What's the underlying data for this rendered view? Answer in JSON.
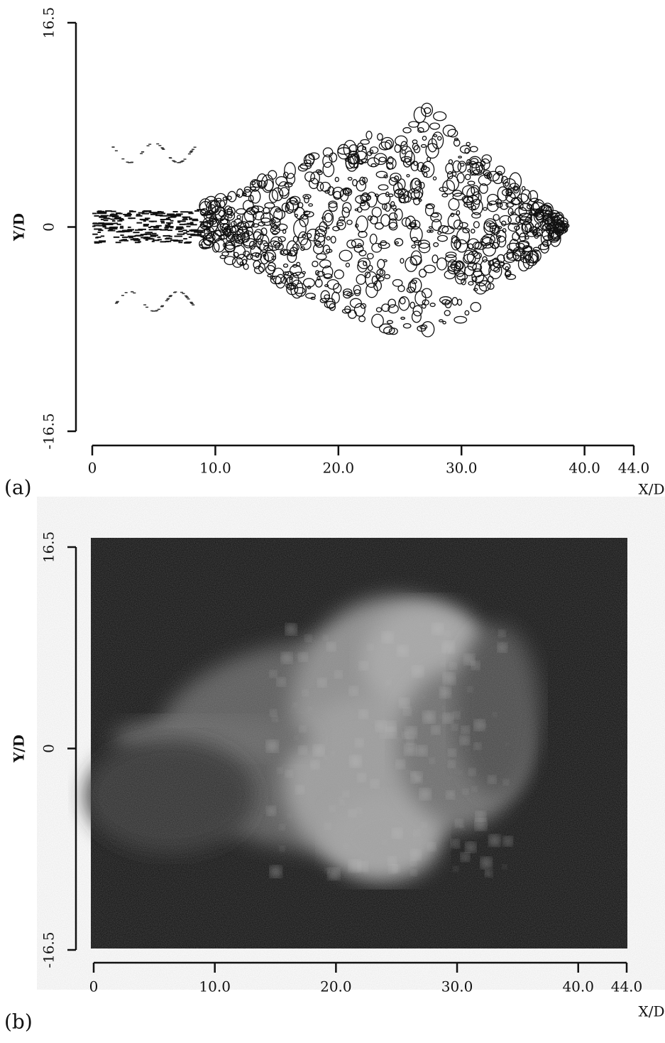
{
  "figure": {
    "panels": [
      {
        "label": "(a)",
        "xlabel": "X/D",
        "ylabel": "Y/D",
        "xlim": [
          0,
          44
        ],
        "ylim": [
          -16.5,
          16.5
        ],
        "xticks": [
          0,
          {
            "value": 10,
            "label": "10.0"
          },
          {
            "value": 20,
            "label": "20.0"
          },
          {
            "value": 30,
            "label": "30.0"
          },
          {
            "value": 40,
            "label": "40.0"
          },
          {
            "value": 44,
            "label": "44.0"
          }
        ],
        "yticks": [
          -16.5,
          0,
          16.5
        ]
      },
      {
        "label": "(b)",
        "xlabel": "X/D",
        "ylabel": "Y/D",
        "xlim": [
          0,
          44
        ],
        "ylim": [
          -16.5,
          16.5
        ],
        "xticks": [
          0,
          {
            "value": 10,
            "label": "10.0"
          },
          {
            "value": 20,
            "label": "20.0"
          },
          {
            "value": 30,
            "label": "30.0"
          },
          {
            "value": 40,
            "label": "40.0"
          },
          {
            "value": 44,
            "label": "44.0"
          }
        ],
        "yticks": [
          -16.5,
          0,
          16.5
        ]
      }
    ]
  }
}
